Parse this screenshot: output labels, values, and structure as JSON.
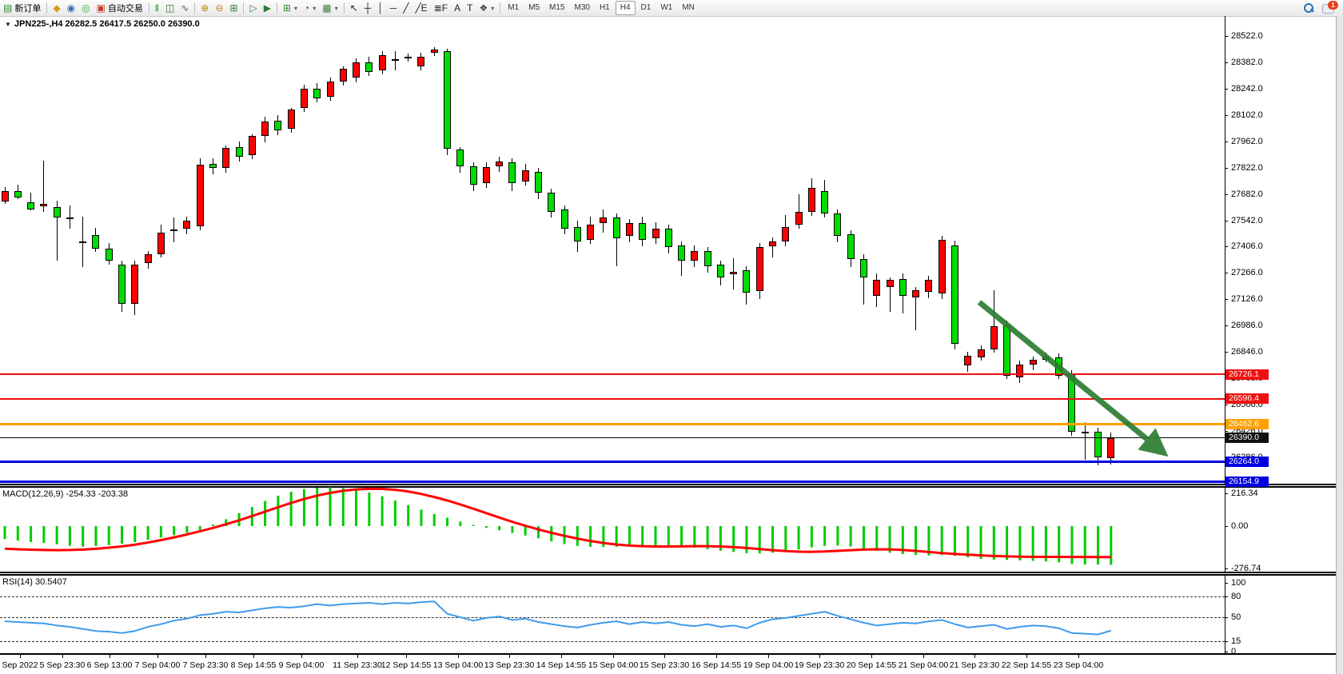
{
  "toolbar": {
    "items": [
      {
        "type": "button",
        "name": "new-order-button",
        "glyph": "▤",
        "glyph_color": "#2e8b2e",
        "label": "新订单"
      },
      {
        "type": "sep"
      },
      {
        "type": "icon",
        "name": "market-watch-icon",
        "glyph": "◆",
        "glyph_color": "#d49a1a"
      },
      {
        "type": "icon",
        "name": "navigator-icon",
        "glyph": "◉",
        "glyph_color": "#3b6fb5"
      },
      {
        "type": "icon",
        "name": "signals-icon",
        "glyph": "◎",
        "glyph_color": "#2faa2f"
      },
      {
        "type": "button",
        "name": "autotrading-button",
        "glyph": "▣",
        "glyph_color": "#c43b2a",
        "label": "自动交易"
      },
      {
        "type": "sep"
      },
      {
        "type": "icon",
        "name": "bar-chart-icon",
        "glyph": "‖",
        "glyph_color": "#2d7d2d"
      },
      {
        "type": "icon",
        "name": "candlestick-chart-icon",
        "glyph": "◫",
        "glyph_color": "#2d7d2d"
      },
      {
        "type": "icon",
        "name": "line-chart-icon",
        "glyph": "∿",
        "glyph_color": "#555555"
      },
      {
        "type": "sep"
      },
      {
        "type": "icon",
        "name": "zoom-in-icon",
        "glyph": "⊕",
        "glyph_color": "#b8860b"
      },
      {
        "type": "icon",
        "name": "zoom-out-icon",
        "glyph": "⊖",
        "glyph_color": "#b8860b"
      },
      {
        "type": "icon",
        "name": "tile-windows-icon",
        "glyph": "⊞",
        "glyph_color": "#2e7d32"
      },
      {
        "type": "sep"
      },
      {
        "type": "icon",
        "name": "auto-scroll-icon",
        "glyph": "▷",
        "glyph_color": "#2e7d32"
      },
      {
        "type": "icon",
        "name": "chart-shift-icon",
        "glyph": "▶",
        "glyph_color": "#2e7d32"
      },
      {
        "type": "sep"
      },
      {
        "type": "icon",
        "name": "new-chart-dropdown",
        "glyph": "⊞",
        "glyph_color": "#2e8b2e",
        "dropdown": true
      },
      {
        "type": "icon",
        "name": "period-dropdown",
        "glyph": "◔",
        "glyph_color": "#2a5db0",
        "dropdown": true
      },
      {
        "type": "icon",
        "name": "template-dropdown",
        "glyph": "▦",
        "glyph_color": "#3a7d3a",
        "dropdown": true
      },
      {
        "type": "sep"
      },
      {
        "type": "icon",
        "name": "cursor-icon",
        "glyph": "↖",
        "glyph_color": "#222222"
      },
      {
        "type": "icon",
        "name": "crosshair-icon",
        "glyph": "┼",
        "glyph_color": "#222222"
      },
      {
        "type": "icon",
        "name": "vertical-line-icon",
        "glyph": "│",
        "glyph_color": "#222222"
      },
      {
        "type": "icon",
        "name": "horizontal-line-icon",
        "glyph": "─",
        "glyph_color": "#222222"
      },
      {
        "type": "icon",
        "name": "trendline-icon",
        "glyph": "╱",
        "glyph_color": "#222222"
      },
      {
        "type": "icon",
        "name": "equidistant-channel-icon",
        "glyph": "╱E",
        "glyph_color": "#222222"
      },
      {
        "type": "icon",
        "name": "fibonacci-icon",
        "glyph": "≣F",
        "glyph_color": "#222222"
      },
      {
        "type": "icon",
        "name": "text-icon",
        "glyph": "A",
        "glyph_color": "#222222"
      },
      {
        "type": "icon",
        "name": "text-label-icon",
        "glyph": "T",
        "glyph_color": "#222222"
      },
      {
        "type": "icon",
        "name": "arrows-dropdown",
        "glyph": "❖",
        "glyph_color": "#444444",
        "dropdown": true
      },
      {
        "type": "sep"
      },
      {
        "type": "tf",
        "label": "M1"
      },
      {
        "type": "tf",
        "label": "M5"
      },
      {
        "type": "tf",
        "label": "M15"
      },
      {
        "type": "tf",
        "label": "M30"
      },
      {
        "type": "tf",
        "label": "H1"
      },
      {
        "type": "tf",
        "label": "H4",
        "active": true
      },
      {
        "type": "tf",
        "label": "D1"
      },
      {
        "type": "tf",
        "label": "W1"
      },
      {
        "type": "tf",
        "label": "MN"
      }
    ],
    "chat_badge": "1"
  },
  "header": {
    "title": "JPN225-,H4  26282.5 26417.5 26250.0 26390.0"
  },
  "chart_data": {
    "type": "candlestick",
    "symbol": "JPN225-",
    "period": "H4",
    "current_bar": {
      "open": 26282.5,
      "high": 26417.5,
      "low": 26250.0,
      "close": 26390.0
    },
    "up_color": "#ff0000",
    "down_color": "#00dd00",
    "price_axis_ticks": [
      "28522.0",
      "28382.0",
      "28242.0",
      "28102.0",
      "27962.0",
      "27822.0",
      "27682.0",
      "27542.0",
      "27406.0",
      "27266.0",
      "27126.0",
      "26986.0",
      "26846.0",
      "26708.0",
      "26566.0",
      "26426.0",
      "26286.0",
      "26146.0"
    ],
    "candles": [
      [
        27645,
        27720,
        27630,
        27697
      ],
      [
        27700,
        27732,
        27655,
        27664
      ],
      [
        27640,
        27690,
        27598,
        27603
      ],
      [
        27620,
        27862,
        27590,
        27630
      ],
      [
        27615,
        27648,
        27330,
        27560
      ],
      [
        27560,
        27622,
        27500,
        27552
      ],
      [
        27430,
        27562,
        27298,
        27424
      ],
      [
        27465,
        27502,
        27378,
        27392
      ],
      [
        27392,
        27422,
        27308,
        27330
      ],
      [
        27310,
        27332,
        27058,
        27100
      ],
      [
        27100,
        27330,
        27043,
        27308
      ],
      [
        27318,
        27382,
        27288,
        27363
      ],
      [
        27363,
        27522,
        27348,
        27480
      ],
      [
        27488,
        27560,
        27428,
        27495
      ],
      [
        27500,
        27562,
        27468,
        27540
      ],
      [
        27512,
        27872,
        27490,
        27840
      ],
      [
        27843,
        27872,
        27788,
        27820
      ],
      [
        27820,
        27942,
        27798,
        27930
      ],
      [
        27933,
        27962,
        27858,
        27880
      ],
      [
        27888,
        28002,
        27868,
        27990
      ],
      [
        27990,
        28092,
        27958,
        28070
      ],
      [
        28072,
        28102,
        27998,
        28022
      ],
      [
        28030,
        28142,
        28008,
        28130
      ],
      [
        28140,
        28262,
        28118,
        28240
      ],
      [
        28242,
        28272,
        28168,
        28192
      ],
      [
        28200,
        28302,
        28178,
        28282
      ],
      [
        28282,
        28362,
        28258,
        28348
      ],
      [
        28300,
        28402,
        28278,
        28380
      ],
      [
        28382,
        28412,
        28308,
        28330
      ],
      [
        28340,
        28442,
        28318,
        28420
      ],
      [
        28400,
        28440,
        28340,
        28390
      ],
      [
        28412,
        28428,
        28388,
        28404
      ],
      [
        28360,
        28432,
        28338,
        28410
      ],
      [
        28435,
        28463,
        28418,
        28452
      ],
      [
        28440,
        28456,
        27888,
        27925
      ],
      [
        27920,
        27932,
        27798,
        27830
      ],
      [
        27830,
        27852,
        27698,
        27735
      ],
      [
        27740,
        27850,
        27718,
        27828
      ],
      [
        27830,
        27880,
        27800,
        27858
      ],
      [
        27850,
        27872,
        27700,
        27740
      ],
      [
        27750,
        27842,
        27728,
        27810
      ],
      [
        27800,
        27822,
        27658,
        27690
      ],
      [
        27690,
        27712,
        27558,
        27590
      ],
      [
        27600,
        27622,
        27468,
        27500
      ],
      [
        27510,
        27542,
        27378,
        27430
      ],
      [
        27440,
        27562,
        27418,
        27520
      ],
      [
        27530,
        27602,
        27478,
        27560
      ],
      [
        27560,
        27582,
        27302,
        27450
      ],
      [
        27460,
        27552,
        27428,
        27530
      ],
      [
        27530,
        27562,
        27408,
        27440
      ],
      [
        27450,
        27532,
        27418,
        27500
      ],
      [
        27500,
        27522,
        27368,
        27400
      ],
      [
        27410,
        27432,
        27248,
        27330
      ],
      [
        27330,
        27412,
        27298,
        27380
      ],
      [
        27380,
        27402,
        27268,
        27300
      ],
      [
        27310,
        27332,
        27198,
        27240
      ],
      [
        27258,
        27342,
        27178,
        27270
      ],
      [
        27280,
        27302,
        27098,
        27160
      ],
      [
        27170,
        27422,
        27128,
        27400
      ],
      [
        27405,
        27452,
        27348,
        27430
      ],
      [
        27430,
        27572,
        27408,
        27510
      ],
      [
        27520,
        27682,
        27498,
        27590
      ],
      [
        27590,
        27768,
        27568,
        27715
      ],
      [
        27700,
        27758,
        27558,
        27580
      ],
      [
        27580,
        27602,
        27428,
        27460
      ],
      [
        27470,
        27492,
        27298,
        27340
      ],
      [
        27340,
        27362,
        27098,
        27240
      ],
      [
        27143,
        27262,
        27082,
        27228
      ],
      [
        27190,
        27240,
        27058,
        27228
      ],
      [
        27232,
        27262,
        27048,
        27143
      ],
      [
        27135,
        27192,
        26961,
        27173
      ],
      [
        27165,
        27249,
        27132,
        27228
      ],
      [
        27156,
        27462,
        27128,
        27440
      ],
      [
        27410,
        27438,
        26858,
        26890
      ],
      [
        26774,
        26848,
        26742,
        26825
      ],
      [
        26817,
        26880,
        26800,
        26859
      ],
      [
        26859,
        27173,
        26840,
        26982
      ],
      [
        26986,
        27010,
        26700,
        26719
      ],
      [
        26710,
        26800,
        26682,
        26778
      ],
      [
        26778,
        26820,
        26750,
        26804
      ],
      [
        26821,
        26842,
        26790,
        26804
      ],
      [
        26817,
        26838,
        26700,
        26719
      ],
      [
        26727,
        26747,
        26401,
        26422
      ],
      [
        26412,
        26473,
        26274,
        26420
      ],
      [
        26422,
        26445,
        26244,
        26286
      ],
      [
        26282.5,
        26417.5,
        26250.0,
        26390.0
      ]
    ],
    "hlines": [
      {
        "value": 26726.1,
        "label": "26726.1",
        "color": "#ee1111",
        "thickness": 2
      },
      {
        "value": 26596.4,
        "label": "26596.4",
        "color": "#ee1111",
        "thickness": 2
      },
      {
        "value": 26462.6,
        "label": "26462.6",
        "color": "#ffa000",
        "thickness": 3
      },
      {
        "value": 26390.0,
        "label": "26390.0",
        "color": "#000000",
        "thickness": 1
      },
      {
        "value": 26264.0,
        "label": "26264.0",
        "color": "#0000e0",
        "thickness": 3
      },
      {
        "value": 26154.9,
        "label": "26154.9",
        "color": "#0000e0",
        "thickness": 3
      }
    ],
    "macd": {
      "label": "MACD(12,26,9) -254.33 -203.38",
      "params": "12,26,9",
      "main_value": -254.33,
      "signal_value": -203.38,
      "axis_labels": [
        "216.34",
        "0.00",
        "-276.74"
      ],
      "histogram_color": "#00cc00",
      "signal_color": "#ff0000",
      "histogram": [
        -85,
        -95,
        -105,
        -110,
        -120,
        -130,
        -135,
        -130,
        -125,
        -115,
        -105,
        -90,
        -75,
        -60,
        -45,
        -25,
        10,
        45,
        85,
        125,
        165,
        200,
        225,
        243,
        252,
        255,
        250,
        238,
        220,
        196,
        168,
        138,
        108,
        80,
        55,
        30,
        8,
        -12,
        -28,
        -45,
        -62,
        -80,
        -100,
        -118,
        -130,
        -136,
        -138,
        -136,
        -132,
        -128,
        -126,
        -128,
        -134,
        -142,
        -152,
        -162,
        -170,
        -178,
        -180,
        -175,
        -166,
        -154,
        -140,
        -130,
        -128,
        -134,
        -148,
        -163,
        -175,
        -184,
        -190,
        -193,
        -190,
        -195,
        -205,
        -215,
        -220,
        -222,
        -225,
        -228,
        -232,
        -238,
        -248,
        -252,
        -253,
        -254.33
      ],
      "signal": [
        -148,
        -152,
        -155,
        -157,
        -158,
        -157,
        -154,
        -149,
        -142,
        -133,
        -122,
        -108,
        -92,
        -74,
        -55,
        -34,
        -12,
        12,
        38,
        66,
        95,
        124,
        152,
        178,
        200,
        218,
        232,
        241,
        245,
        244,
        238,
        227,
        211,
        191,
        168,
        142,
        114,
        85,
        56,
        28,
        2,
        -22,
        -44,
        -64,
        -82,
        -98,
        -111,
        -121,
        -128,
        -132,
        -134,
        -134,
        -133,
        -132,
        -132,
        -134,
        -138,
        -144,
        -151,
        -158,
        -164,
        -168,
        -169,
        -167,
        -163,
        -158,
        -154,
        -152,
        -153,
        -157,
        -163,
        -170,
        -177,
        -183,
        -188,
        -192,
        -196,
        -199,
        -201,
        -202,
        -202,
        -202,
        -203,
        -203,
        -203.2,
        -203.38
      ]
    },
    "rsi": {
      "label": "RSI(14) 30.5407",
      "period": 14,
      "current_value": 30.5407,
      "axis_labels": [
        "100",
        "80",
        "50",
        "15",
        "0"
      ],
      "dashed_levels": [
        80,
        50,
        15
      ],
      "line_color": "#3e9bec",
      "values": [
        44,
        43,
        42,
        41,
        38,
        36,
        33,
        30,
        29,
        27,
        30,
        36,
        40,
        45,
        48,
        53,
        55,
        58,
        57,
        60,
        63,
        65,
        64,
        66,
        69,
        67,
        69,
        70,
        71,
        69,
        71,
        70,
        72,
        73,
        55,
        50,
        45,
        49,
        51,
        46,
        48,
        43,
        40,
        37,
        35,
        39,
        42,
        44,
        40,
        43,
        41,
        43,
        39,
        37,
        40,
        36,
        38,
        34,
        42,
        47,
        49,
        52,
        55,
        58,
        52,
        47,
        42,
        38,
        40,
        42,
        41,
        44,
        46,
        40,
        35,
        37,
        39,
        33,
        36,
        38,
        37,
        34,
        27,
        26,
        25,
        30.54
      ]
    },
    "time_axis": [
      "Sep 2022",
      "5 Sep 23:30",
      "6 Sep 13:00",
      "7 Sep 04:00",
      "7 Sep 23:30",
      "8 Sep 14:55",
      "9 Sep 04:00",
      "11 Sep 23:30",
      "12 Sep 14:55",
      "13 Sep 04:00",
      "13 Sep 23:30",
      "14 Sep 14:55",
      "15 Sep 04:00",
      "15 Sep 23:30",
      "16 Sep 14:55",
      "19 Sep 04:00",
      "19 Sep 23:30",
      "20 Sep 14:55",
      "21 Sep 04:00",
      "21 Sep 23:30",
      "22 Sep 14:55",
      "23 Sep 04:00"
    ],
    "annotation_arrow": {
      "color": "#2e7d32"
    }
  }
}
